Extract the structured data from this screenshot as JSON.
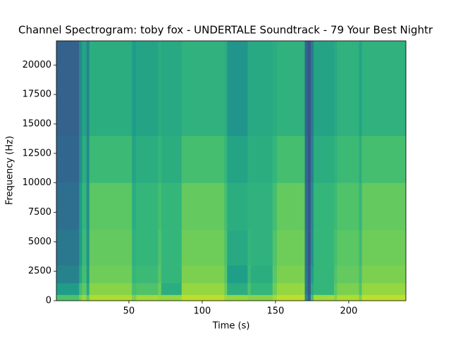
{
  "chart_data": {
    "type": "spectrogram",
    "title": "Channel Spectrogram: toby fox - UNDERTALE Soundtrack - 79 Your Best Nightr",
    "x_label": "Time (s)",
    "y_label": "Frequency (Hz)",
    "colormap": "viridis",
    "time_edges": [
      0.5,
      16,
      18,
      21,
      23,
      52,
      55,
      70,
      72,
      86,
      115,
      117,
      131,
      133,
      148,
      151,
      170,
      172,
      174,
      176,
      190,
      192,
      207,
      209,
      239
    ],
    "freq_edges": [
      0,
      500,
      1500,
      3000,
      6000,
      10000,
      14000,
      22050
    ],
    "z": [
      [
        0.72,
        0.55,
        0.45,
        0.4,
        0.36,
        0.33,
        0.31
      ],
      [
        0.8,
        0.7,
        0.6,
        0.55,
        0.55,
        0.5,
        0.48
      ],
      [
        0.85,
        0.75,
        0.7,
        0.68,
        0.66,
        0.62,
        0.58
      ],
      [
        0.75,
        0.6,
        0.55,
        0.52,
        0.5,
        0.48,
        0.46
      ],
      [
        0.88,
        0.82,
        0.78,
        0.76,
        0.74,
        0.68,
        0.62
      ],
      [
        0.8,
        0.7,
        0.66,
        0.64,
        0.62,
        0.58,
        0.55
      ],
      [
        0.86,
        0.72,
        0.68,
        0.66,
        0.66,
        0.62,
        0.58
      ],
      [
        0.84,
        0.78,
        0.74,
        0.72,
        0.7,
        0.66,
        0.62
      ],
      [
        0.84,
        0.62,
        0.66,
        0.66,
        0.66,
        0.62,
        0.6
      ],
      [
        0.9,
        0.84,
        0.8,
        0.78,
        0.76,
        0.7,
        0.64
      ],
      [
        0.85,
        0.78,
        0.74,
        0.72,
        0.7,
        0.66,
        0.62
      ],
      [
        0.84,
        0.62,
        0.56,
        0.6,
        0.62,
        0.58,
        0.52
      ],
      [
        0.82,
        0.72,
        0.68,
        0.66,
        0.64,
        0.62,
        0.6
      ],
      [
        0.82,
        0.66,
        0.62,
        0.64,
        0.64,
        0.62,
        0.6
      ],
      [
        0.86,
        0.78,
        0.74,
        0.72,
        0.7,
        0.66,
        0.62
      ],
      [
        0.9,
        0.84,
        0.8,
        0.78,
        0.76,
        0.7,
        0.64
      ],
      [
        0.5,
        0.42,
        0.4,
        0.38,
        0.36,
        0.34,
        0.32
      ],
      [
        0.3,
        0.28,
        0.27,
        0.26,
        0.26,
        0.25,
        0.25
      ],
      [
        0.7,
        0.6,
        0.55,
        0.5,
        0.48,
        0.45,
        0.42
      ],
      [
        0.86,
        0.66,
        0.66,
        0.66,
        0.66,
        0.62,
        0.58
      ],
      [
        0.82,
        0.74,
        0.72,
        0.7,
        0.68,
        0.64,
        0.6
      ],
      [
        0.88,
        0.8,
        0.76,
        0.74,
        0.72,
        0.68,
        0.64
      ],
      [
        0.8,
        0.72,
        0.7,
        0.68,
        0.66,
        0.62,
        0.58
      ],
      [
        0.9,
        0.84,
        0.8,
        0.78,
        0.76,
        0.7,
        0.64
      ]
    ],
    "xlim": [
      0.5,
      239
    ],
    "ylim": [
      0,
      22050
    ],
    "xticks": [
      50,
      100,
      150,
      200
    ],
    "yticks": [
      0,
      2500,
      5000,
      7500,
      10000,
      12500,
      15000,
      17500,
      20000
    ]
  }
}
